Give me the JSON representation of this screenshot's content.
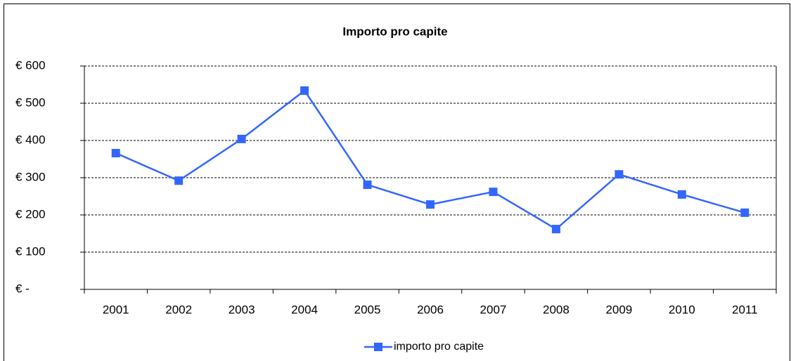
{
  "chart_data": {
    "type": "line",
    "title": "Importo pro capite",
    "categories": [
      "2001",
      "2002",
      "2003",
      "2004",
      "2005",
      "2006",
      "2007",
      "2008",
      "2009",
      "2010",
      "2011"
    ],
    "series": [
      {
        "name": "importo pro capite",
        "color": "#3366ff",
        "values": [
          366,
          292,
          404,
          534,
          281,
          228,
          262,
          162,
          309,
          255,
          206
        ]
      }
    ],
    "ylim": [
      0,
      600
    ],
    "yticks": [
      {
        "value": 0,
        "label": "€ -"
      },
      {
        "value": 100,
        "label": "€ 100"
      },
      {
        "value": 200,
        "label": "€ 200"
      },
      {
        "value": 300,
        "label": "€ 300"
      },
      {
        "value": 400,
        "label": "€ 400"
      },
      {
        "value": 500,
        "label": "€ 500"
      },
      {
        "value": 600,
        "label": "€ 600"
      }
    ],
    "grid": true,
    "legend": "bottom"
  }
}
